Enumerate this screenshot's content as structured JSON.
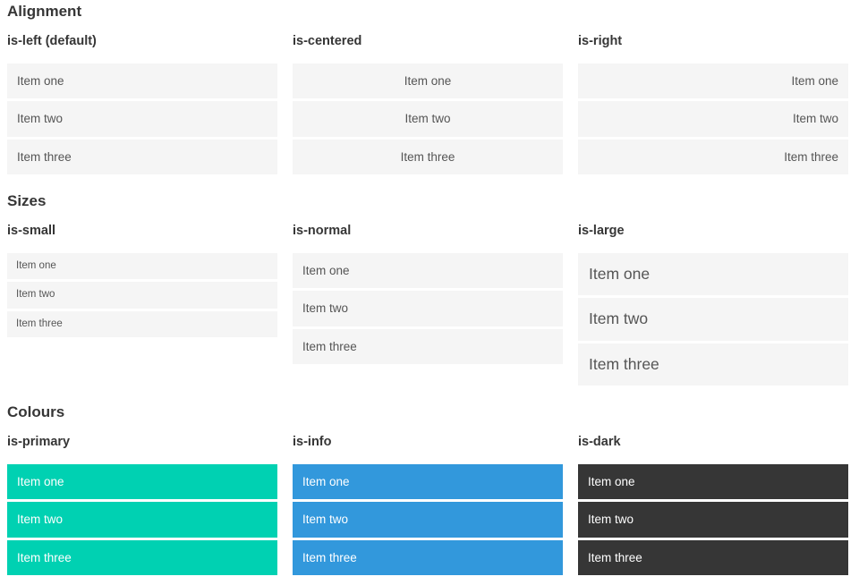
{
  "colors": {
    "heading": "#363636",
    "item_bg": "#f5f5f5",
    "item_text": "#555555",
    "primary": "#00d1b2",
    "info": "#3298dc",
    "dark": "#363636",
    "on_color_text": "#ffffff"
  },
  "sections": [
    {
      "title": "Alignment",
      "groups": [
        {
          "label": "is-left (default)",
          "variant": "left",
          "items": [
            "Item one",
            "Item two",
            "Item three"
          ]
        },
        {
          "label": "is-centered",
          "variant": "centered",
          "items": [
            "Item one",
            "Item two",
            "Item three"
          ]
        },
        {
          "label": "is-right",
          "variant": "right",
          "items": [
            "Item one",
            "Item two",
            "Item three"
          ]
        }
      ]
    },
    {
      "title": "Sizes",
      "groups": [
        {
          "label": "is-small",
          "variant": "small",
          "items": [
            "Item one",
            "Item two",
            "Item three"
          ]
        },
        {
          "label": "is-normal",
          "variant": "normal",
          "items": [
            "Item one",
            "Item two",
            "Item three"
          ]
        },
        {
          "label": "is-large",
          "variant": "large",
          "items": [
            "Item one",
            "Item two",
            "Item three"
          ]
        }
      ]
    },
    {
      "title": "Colours",
      "groups": [
        {
          "label": "is-primary",
          "variant": "primary",
          "items": [
            "Item one",
            "Item two",
            "Item three"
          ]
        },
        {
          "label": "is-info",
          "variant": "info",
          "items": [
            "Item one",
            "Item two",
            "Item three"
          ]
        },
        {
          "label": "is-dark",
          "variant": "dark",
          "items": [
            "Item one",
            "Item two",
            "Item three"
          ]
        }
      ]
    }
  ]
}
